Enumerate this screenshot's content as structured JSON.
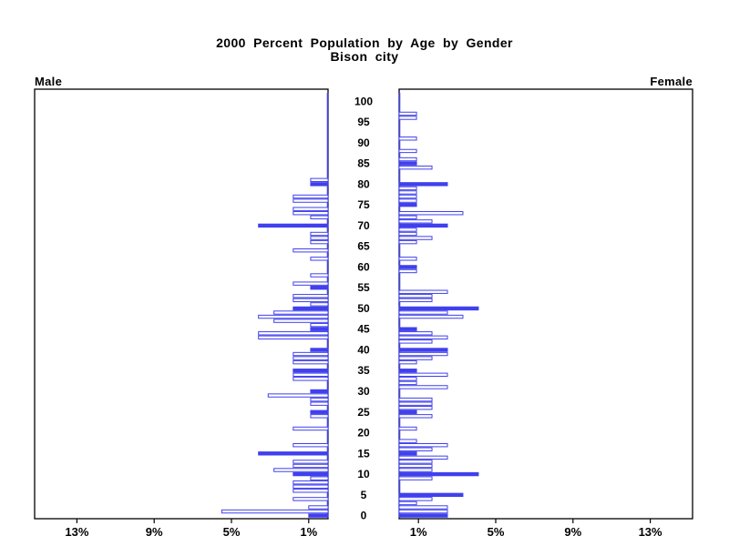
{
  "header": {
    "title_line1": "2000 Percent Population by Age by Gender",
    "title_line2": "Bison city"
  },
  "panels": {
    "left_label": "Male",
    "right_label": "Female"
  },
  "chart_data": {
    "type": "bar",
    "variant": "population-pyramid",
    "title": "2000 Percent Population by Age by Gender",
    "subtitle": "Bison city",
    "unit": "percent of population",
    "age_min": 0,
    "age_max": 100,
    "age_tick_step": 5,
    "age_tick_labels": [
      "0",
      "5",
      "10",
      "15",
      "20",
      "25",
      "30",
      "35",
      "40",
      "45",
      "50",
      "55",
      "60",
      "65",
      "70",
      "75",
      "80",
      "85",
      "90",
      "95",
      "100"
    ],
    "pct_tick_values": [
      1,
      5,
      9,
      13
    ],
    "pct_tick_labels_left": [
      "13%",
      "9%",
      "5%",
      "1%"
    ],
    "pct_tick_labels_right": [
      "1%",
      "5%",
      "9%",
      "13%"
    ],
    "xlim_per_side": [
      0,
      15.2
    ],
    "grid": false,
    "highlight_rule": "bars for ages divisible by 5 are drawn solid blue; all other ages are white bars with blue outline",
    "colors": {
      "bar_fill": "#ffffff",
      "bar_outline": "#4040ee",
      "highlight_fill": "#4040ee",
      "axis": "#000000",
      "background": "#ffffff"
    },
    "series": [
      {
        "name": "Male",
        "side": "left",
        "values": [
          1.0,
          5.5,
          1.0,
          0,
          1.8,
          0,
          1.8,
          1.8,
          1.8,
          0.9,
          1.8,
          2.8,
          1.8,
          1.8,
          0,
          3.6,
          0,
          1.8,
          0,
          0,
          0,
          1.8,
          0,
          0,
          0.9,
          0.9,
          0,
          0.9,
          0.9,
          3.1,
          0.9,
          0,
          0,
          1.8,
          1.8,
          1.8,
          0,
          1.8,
          1.8,
          1.8,
          0.9,
          0,
          0,
          3.6,
          3.6,
          0.9,
          0.9,
          2.8,
          3.6,
          2.8,
          1.8,
          0.9,
          1.8,
          1.8,
          0,
          0.9,
          1.8,
          0,
          0.9,
          0,
          0,
          0,
          0.9,
          0,
          1.8,
          0,
          0.9,
          0.9,
          0.9,
          0,
          3.6,
          0,
          0.9,
          1.8,
          1.8,
          0,
          1.8,
          1.8,
          0,
          0,
          0.9,
          0.9,
          0,
          0,
          0,
          0,
          0,
          0,
          0,
          0,
          0,
          0,
          0,
          0,
          0,
          0,
          0,
          0,
          0,
          0,
          0
        ]
      },
      {
        "name": "Female",
        "side": "right",
        "values": [
          2.5,
          2.5,
          2.5,
          0.9,
          1.7,
          3.3,
          0,
          0,
          0,
          1.7,
          4.1,
          1.7,
          1.7,
          1.7,
          2.5,
          0.9,
          1.7,
          2.5,
          0.9,
          0,
          0,
          0.9,
          0,
          0,
          1.7,
          0.9,
          1.7,
          1.7,
          1.7,
          0,
          0,
          2.5,
          0.9,
          0.9,
          2.5,
          0.9,
          0,
          0.9,
          1.7,
          2.5,
          2.5,
          0,
          1.7,
          2.5,
          1.7,
          0.9,
          0,
          0,
          3.3,
          2.5,
          4.1,
          0,
          1.7,
          1.7,
          2.5,
          0,
          0,
          0,
          0,
          0.9,
          0.9,
          0,
          0.9,
          0,
          0,
          0,
          0.9,
          1.7,
          0.9,
          0.9,
          2.5,
          1.7,
          0.9,
          3.3,
          0,
          0.9,
          0.9,
          0.9,
          0.9,
          0.9,
          2.5,
          0,
          0,
          0,
          1.7,
          0.9,
          0.9,
          0,
          0.9,
          0,
          0,
          0.9,
          0,
          0,
          0,
          0,
          0.9,
          0.9,
          0,
          0,
          0
        ]
      }
    ]
  }
}
